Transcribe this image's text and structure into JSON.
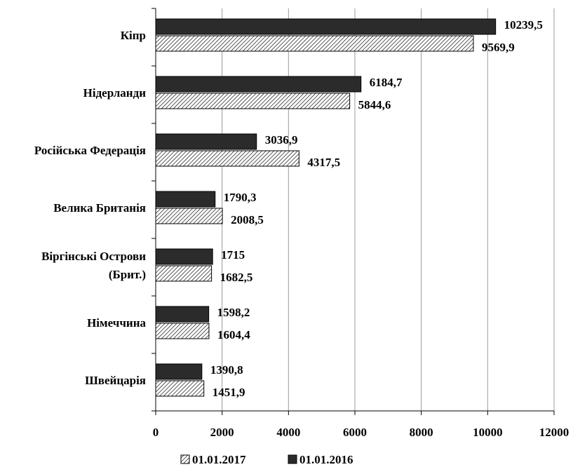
{
  "chart_data": {
    "type": "bar",
    "orientation": "horizontal",
    "categories": [
      [
        "Кіпр"
      ],
      [
        "Нідерланди"
      ],
      [
        "Російська Федерація"
      ],
      [
        "Велика Британія"
      ],
      [
        "Віргінські Острови",
        "(Брит.)"
      ],
      [
        "Німеччина"
      ],
      [
        "Швейцарія"
      ]
    ],
    "series": [
      {
        "name": "01.01.2016",
        "color": "#2b2b2b",
        "pattern": "solid",
        "values": [
          10239.5,
          6184.7,
          3036.9,
          1790.3,
          1715,
          1598.2,
          1390.8
        ],
        "labels": [
          "10239,5",
          "6184,7",
          "3036,9",
          "1790,3",
          "1715",
          "1598,2",
          "1390,8"
        ]
      },
      {
        "name": "01.01.2017",
        "color": "#ffffff",
        "pattern": "diagonal-hatch",
        "values": [
          9569.9,
          5844.6,
          4317.5,
          2008.5,
          1682.5,
          1604.4,
          1451.9
        ],
        "labels": [
          "9569,9",
          "5844,6",
          "4317,5",
          "2008,5",
          "1682,5",
          "1604,4",
          "1451,9"
        ]
      }
    ],
    "xlim": [
      0,
      12000
    ],
    "xticks": [
      0,
      2000,
      4000,
      6000,
      8000,
      10000,
      12000
    ],
    "grid": "vertical",
    "legend": {
      "position": "bottom",
      "order": [
        "01.01.2017",
        "01.01.2016"
      ]
    }
  }
}
